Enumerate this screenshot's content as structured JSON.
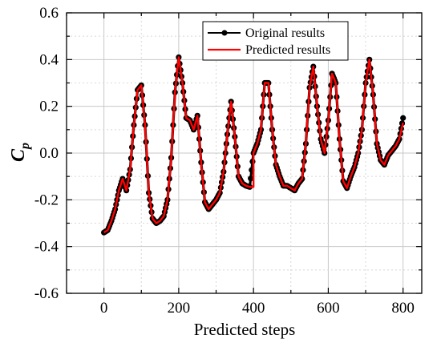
{
  "chart_data": {
    "type": "line",
    "xlabel": "Predicted steps",
    "ylabel_main": "C",
    "ylabel_sub": "p",
    "xlim": [
      -100,
      850
    ],
    "ylim": [
      -0.6,
      0.6
    ],
    "xticks": [
      0,
      200,
      400,
      600,
      800
    ],
    "xtick_labels": [
      "0",
      "200",
      "400",
      "600",
      "800"
    ],
    "yticks": [
      -0.6,
      -0.4,
      -0.2,
      0.0,
      0.2,
      0.4,
      0.6
    ],
    "ytick_labels": [
      "-0.6",
      "-0.4",
      "-0.2",
      "0.0",
      "0.2",
      "0.4",
      "0.6"
    ],
    "grid": true,
    "legend_position": "top-right",
    "series": [
      {
        "name": "Original results",
        "color": "#000000",
        "marker": "circle",
        "x": [
          0,
          10,
          20,
          30,
          40,
          50,
          60,
          70,
          80,
          90,
          100,
          110,
          120,
          130,
          140,
          150,
          160,
          170,
          180,
          190,
          200,
          210,
          220,
          230,
          240,
          250,
          260,
          270,
          280,
          290,
          300,
          310,
          320,
          330,
          340,
          350,
          360,
          370,
          380,
          390,
          400,
          410,
          420,
          430,
          440,
          450,
          460,
          470,
          480,
          490,
          500,
          510,
          520,
          530,
          540,
          550,
          560,
          570,
          580,
          590,
          600,
          610,
          620,
          630,
          640,
          650,
          660,
          670,
          680,
          690,
          700,
          710,
          720,
          730,
          740,
          750,
          760,
          770,
          780,
          790,
          800
        ],
        "y": [
          -0.34,
          -0.33,
          -0.29,
          -0.24,
          -0.16,
          -0.11,
          -0.16,
          -0.07,
          0.12,
          0.27,
          0.29,
          0.12,
          -0.17,
          -0.28,
          -0.3,
          -0.29,
          -0.27,
          -0.2,
          -0.02,
          0.26,
          0.41,
          0.3,
          0.15,
          0.14,
          0.1,
          0.16,
          -0.04,
          -0.21,
          -0.24,
          -0.22,
          -0.2,
          -0.17,
          -0.08,
          0.08,
          0.22,
          0.07,
          -0.1,
          -0.13,
          -0.14,
          -0.145,
          0.0,
          0.04,
          0.1,
          0.3,
          0.3,
          0.1,
          -0.05,
          -0.1,
          -0.14,
          -0.14,
          -0.15,
          -0.16,
          -0.13,
          -0.11,
          0.04,
          0.28,
          0.37,
          0.2,
          0.06,
          0.0,
          0.14,
          0.34,
          0.3,
          0.06,
          -0.12,
          -0.15,
          -0.1,
          -0.06,
          0.0,
          0.1,
          0.3,
          0.4,
          0.25,
          0.04,
          -0.03,
          -0.05,
          -0.01,
          0.01,
          0.03,
          0.06,
          0.15
        ]
      },
      {
        "name": "Predicted results",
        "color": "#ff0000",
        "marker": "none",
        "x": [
          0,
          10,
          20,
          30,
          40,
          50,
          60,
          70,
          80,
          90,
          100,
          110,
          120,
          130,
          140,
          150,
          160,
          170,
          180,
          190,
          200,
          210,
          220,
          230,
          240,
          250,
          260,
          270,
          280,
          290,
          300,
          310,
          320,
          330,
          340,
          350,
          360,
          370,
          380,
          390,
          400,
          400,
          410,
          420,
          430,
          440,
          450,
          460,
          470,
          480,
          490,
          500,
          510,
          520,
          530,
          540,
          550,
          560,
          570,
          580,
          590,
          600,
          610,
          620,
          630,
          640,
          650,
          660,
          670,
          680,
          690,
          700,
          710,
          720,
          730,
          740,
          750,
          760,
          770,
          780,
          790,
          800
        ],
        "y": [
          -0.34,
          -0.33,
          -0.29,
          -0.24,
          -0.16,
          -0.11,
          -0.16,
          -0.07,
          0.12,
          0.27,
          0.29,
          0.12,
          -0.17,
          -0.28,
          -0.3,
          -0.29,
          -0.27,
          -0.2,
          -0.02,
          0.26,
          0.41,
          0.3,
          0.15,
          0.14,
          0.1,
          0.16,
          -0.04,
          -0.21,
          -0.24,
          -0.22,
          -0.2,
          -0.17,
          -0.08,
          0.08,
          0.22,
          0.07,
          -0.1,
          -0.13,
          -0.14,
          -0.145,
          -0.145,
          0.0,
          0.04,
          0.1,
          0.3,
          0.3,
          0.1,
          -0.05,
          -0.1,
          -0.14,
          -0.14,
          -0.15,
          -0.16,
          -0.13,
          -0.11,
          0.04,
          0.28,
          0.37,
          0.2,
          0.06,
          0.0,
          0.14,
          0.34,
          0.3,
          0.06,
          -0.12,
          -0.15,
          -0.1,
          -0.06,
          0.0,
          0.1,
          0.3,
          0.4,
          0.25,
          0.04,
          -0.03,
          -0.05,
          -0.01,
          0.01,
          0.03,
          0.06,
          0.13
        ]
      }
    ]
  }
}
